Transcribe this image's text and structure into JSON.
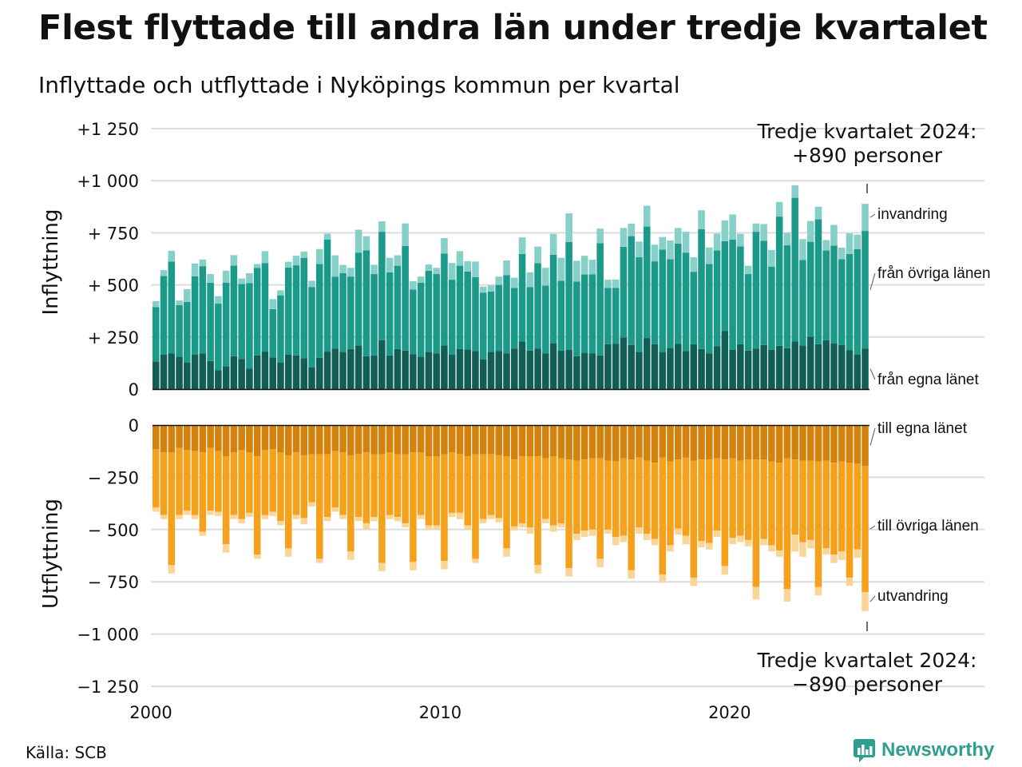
{
  "title": "Flest flyttade till andra län under tredje kvartalet",
  "subtitle": "Inflyttade och utflyttade i Nyköpings kommun per kvartal",
  "source": "Källa: SCB",
  "logo": "Newsworthy",
  "annotation_top": {
    "line1": "Tredje kvartalet 2024:",
    "line2": "+890 personer"
  },
  "annotation_bottom": {
    "line1": "Tredje kvartalet 2024:",
    "line2": "−890 personer"
  },
  "colors": {
    "in_own": "#115e54",
    "in_other": "#1b9a8a",
    "in_imm": "#86d0c7",
    "out_own": "#d4820e",
    "out_other": "#f6a11c",
    "out_emi": "#f9d598",
    "grid": "#dddddd"
  },
  "chart_data": {
    "type": "bar",
    "stacked": true,
    "x_ticks": [
      "2000",
      "2010",
      "2020"
    ],
    "xlim": [
      2000,
      2025
    ],
    "top_panel": {
      "ylabel": "Inflyttning",
      "ylim": [
        0,
        1250
      ],
      "y_ticks": [
        0,
        250,
        500,
        750,
        1000,
        1250
      ],
      "y_tick_labels": [
        "0",
        "+  250",
        "+  500",
        "+  750",
        "+1 000",
        "+1 250"
      ],
      "series": [
        {
          "name": "från egna länet",
          "values": [
            132,
            165,
            172,
            155,
            128,
            165,
            172,
            135,
            90,
            110,
            158,
            145,
            98,
            162,
            180,
            152,
            128,
            165,
            162,
            148,
            105,
            150,
            180,
            195,
            178,
            192,
            210,
            158,
            162,
            235,
            162,
            192,
            185,
            168,
            155,
            178,
            172,
            210,
            165,
            192,
            190,
            182,
            142,
            178,
            182,
            172,
            195,
            228,
            185,
            195,
            172,
            220,
            185,
            188,
            158,
            175,
            172,
            162,
            215,
            218,
            248,
            212,
            178,
            245,
            215,
            178,
            198,
            218,
            182,
            215,
            192,
            172,
            205,
            278,
            188,
            215,
            185,
            195,
            212,
            188,
            208,
            196,
            228,
            210,
            252,
            215,
            235,
            220,
            212,
            186,
            165,
            195
          ]
        },
        {
          "name": "från övriga länen",
          "values": [
            262,
            378,
            440,
            248,
            290,
            376,
            418,
            375,
            320,
            400,
            435,
            360,
            410,
            420,
            424,
            232,
            322,
            418,
            432,
            482,
            385,
            450,
            538,
            345,
            378,
            348,
            445,
            508,
            390,
            520,
            398,
            400,
            502,
            310,
            355,
            390,
            380,
            440,
            360,
            400,
            374,
            355,
            320,
            290,
            318,
            375,
            290,
            420,
            305,
            409,
            325,
            425,
            335,
            518,
            358,
            375,
            379,
            538,
            270,
            268,
            435,
            522,
            455,
            535,
            398,
            492,
            425,
            480,
            473,
            348,
            576,
            428,
            461,
            432,
            530,
            470,
            367,
            560,
            500,
            400,
            620,
            494,
            690,
            410,
            455,
            600,
            430,
            468,
            412,
            462,
            506,
            564
          ]
        },
        {
          "name": "invandring",
          "values": [
            28,
            28,
            52,
            22,
            62,
            62,
            32,
            42,
            36,
            58,
            50,
            26,
            48,
            18,
            58,
            48,
            24,
            28,
            46,
            30,
            30,
            72,
            28,
            102,
            40,
            42,
            110,
            68,
            45,
            50,
            70,
            50,
            108,
            40,
            30,
            30,
            30,
            75,
            80,
            70,
            50,
            75,
            30,
            30,
            40,
            70,
            50,
            80,
            70,
            80,
            85,
            100,
            110,
            138,
            100,
            90,
            70,
            70,
            40,
            40,
            90,
            60,
            75,
            100,
            80,
            60,
            90,
            75,
            100,
            70,
            90,
            80,
            80,
            100,
            120,
            60,
            40,
            40,
            80,
            80,
            70,
            60,
            60,
            100,
            100,
            60,
            50,
            100,
            55,
            100,
            70,
            130
          ]
        }
      ]
    },
    "bottom_panel": {
      "ylabel": "Utflyttning",
      "ylim": [
        -1250,
        0
      ],
      "y_ticks": [
        0,
        -250,
        -500,
        -750,
        -1000,
        -1250
      ],
      "y_tick_labels": [
        "0",
        "−  250",
        "−  500",
        "−  750",
        "−1 000",
        "−1 250"
      ],
      "series": [
        {
          "name": "till egna länet",
          "values": [
            -115,
            -130,
            -130,
            -110,
            -120,
            -125,
            -130,
            -110,
            -125,
            -150,
            -130,
            -120,
            -130,
            -150,
            -120,
            -115,
            -130,
            -145,
            -130,
            -145,
            -140,
            -140,
            -140,
            -125,
            -130,
            -145,
            -140,
            -130,
            -140,
            -140,
            -130,
            -140,
            -140,
            -130,
            -130,
            -150,
            -150,
            -140,
            -130,
            -140,
            -150,
            -140,
            -140,
            -140,
            -145,
            -150,
            -165,
            -150,
            -150,
            -150,
            -160,
            -150,
            -160,
            -165,
            -170,
            -165,
            -160,
            -160,
            -170,
            -175,
            -160,
            -165,
            -155,
            -170,
            -180,
            -155,
            -175,
            -165,
            -155,
            -170,
            -165,
            -165,
            -160,
            -165,
            -160,
            -170,
            -165,
            -165,
            -165,
            -175,
            -180,
            -160,
            -165,
            -170,
            -170,
            -175,
            -170,
            -180,
            -175,
            -180,
            -185,
            -195
          ]
        },
        {
          "name": "till övriga länen",
          "values": [
            -280,
            -300,
            -540,
            -320,
            -290,
            -305,
            -380,
            -300,
            -290,
            -420,
            -300,
            -330,
            -290,
            -470,
            -310,
            -300,
            -330,
            -445,
            -300,
            -300,
            -230,
            -500,
            -300,
            -270,
            -300,
            -460,
            -300,
            -340,
            -300,
            -520,
            -300,
            -300,
            -330,
            -525,
            -300,
            -330,
            -330,
            -510,
            -290,
            -280,
            -330,
            -500,
            -310,
            -290,
            -300,
            -440,
            -320,
            -320,
            -340,
            -520,
            -290,
            -330,
            -310,
            -520,
            -350,
            -340,
            -340,
            -480,
            -330,
            -360,
            -370,
            -530,
            -335,
            -350,
            -365,
            -560,
            -400,
            -330,
            -375,
            -560,
            -390,
            -400,
            -345,
            -510,
            -380,
            -360,
            -385,
            -610,
            -380,
            -400,
            -420,
            -625,
            -360,
            -390,
            -380,
            -600,
            -420,
            -440,
            -430,
            -550,
            -410,
            -605
          ]
        },
        {
          "name": "utvandring",
          "values": [
            -20,
            -20,
            -40,
            -20,
            -20,
            -20,
            -20,
            -20,
            -20,
            -40,
            -20,
            -20,
            -20,
            -20,
            -20,
            -20,
            -20,
            -40,
            -20,
            -30,
            -20,
            -20,
            -20,
            -20,
            -20,
            -40,
            -20,
            -30,
            -20,
            -40,
            -20,
            -20,
            -20,
            -40,
            -20,
            -20,
            -20,
            -40,
            -20,
            -30,
            -20,
            -20,
            -20,
            -20,
            -20,
            -40,
            -20,
            -20,
            -30,
            -40,
            -20,
            -30,
            -20,
            -40,
            -30,
            -30,
            -30,
            -40,
            -20,
            -40,
            -30,
            -40,
            -30,
            -30,
            -30,
            -40,
            -30,
            -30,
            -40,
            -40,
            -30,
            -30,
            -30,
            -40,
            -30,
            -30,
            -30,
            -60,
            -30,
            -30,
            -30,
            -60,
            -80,
            -70,
            -40,
            -40,
            -30,
            -40,
            -40,
            -40,
            -40,
            -90
          ]
        }
      ]
    }
  }
}
